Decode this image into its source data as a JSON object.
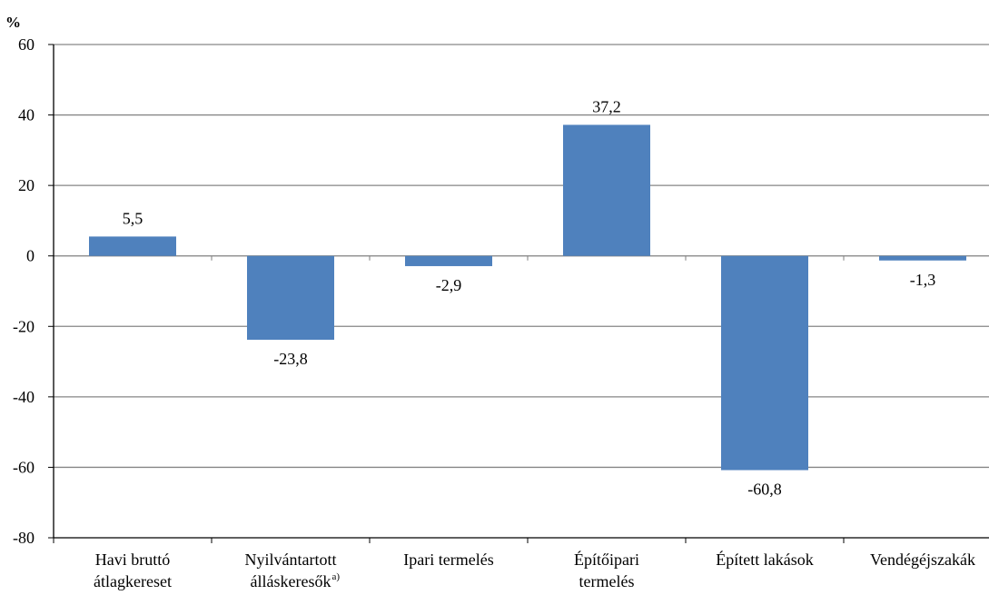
{
  "chart_data": {
    "type": "bar",
    "unit_label": "%",
    "categories": [
      [
        "Havi bruttó",
        "átlagkereset"
      ],
      [
        "Nyilvántartott",
        "álláskeresők"
      ],
      [
        "Ipari termelés"
      ],
      [
        "Építőipari",
        "termelés"
      ],
      [
        "Épített lakások"
      ],
      [
        "Vendégéjszakák"
      ]
    ],
    "category_superscripts": [
      "",
      "a)",
      "",
      "",
      "",
      ""
    ],
    "values": [
      5.5,
      -23.8,
      -2.9,
      37.2,
      -60.8,
      -1.3
    ],
    "value_labels": [
      "5,5",
      "-23,8",
      "-2,9",
      "37,2",
      "-60,8",
      "-1,3"
    ],
    "ylim": [
      -80,
      60
    ],
    "yticks": [
      60,
      40,
      20,
      0,
      -20,
      -40,
      -60,
      -80
    ],
    "grid": true,
    "bar_color": "#4f81bd",
    "grid_color": "#868686",
    "axis_color": "#000000"
  }
}
